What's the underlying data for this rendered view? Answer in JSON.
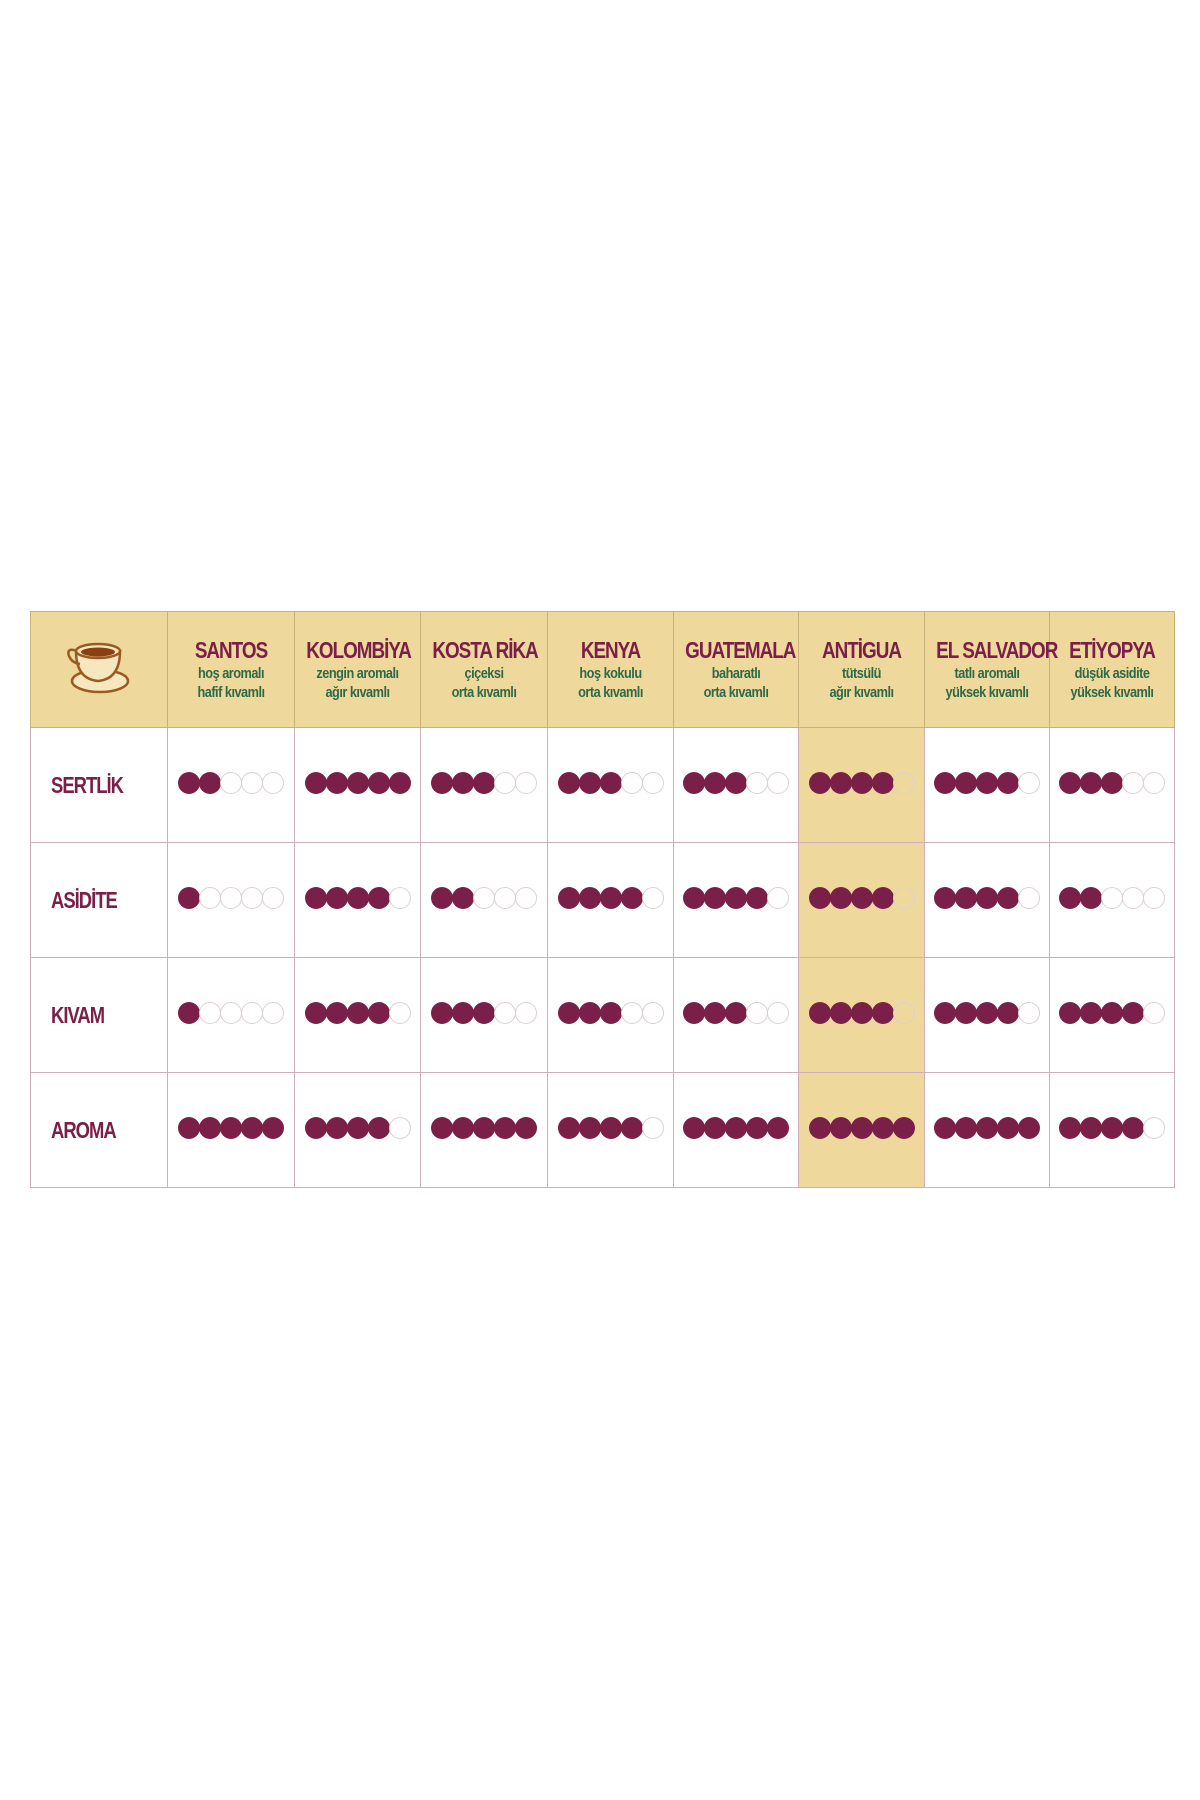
{
  "colors": {
    "header_bg": "#eed89b",
    "accent": "#7a2048",
    "subtitle": "#2f6a48",
    "highlight_column": "ANTİGUA"
  },
  "header_icon": "coffee-cup-icon",
  "columns": [
    {
      "name": "SANTOS",
      "line1": "hoş aromalı",
      "line2": "hafif kıvamlı"
    },
    {
      "name": "KOLOMBİYA",
      "line1": "zengin aromalı",
      "line2": "ağır kıvamlı"
    },
    {
      "name": "KOSTA RİKA",
      "line1": "çiçeksi",
      "line2": "orta kıvamlı"
    },
    {
      "name": "KENYA",
      "line1": "hoş kokulu",
      "line2": "orta kıvamlı"
    },
    {
      "name": "GUATEMALA",
      "line1": "baharatlı",
      "line2": "orta kıvamlı"
    },
    {
      "name": "ANTİGUA",
      "line1": "tütsülü",
      "line2": "ağır kıvamlı",
      "highlighted": true
    },
    {
      "name": "EL SALVADOR",
      "line1": "tatlı aromalı",
      "line2": "yüksek kıvamlı"
    },
    {
      "name": "ETİYOPYA",
      "line1": "düşük asidite",
      "line2": "yüksek kıvamlı"
    }
  ],
  "max_rating": 5,
  "rows": [
    {
      "label": "SERTLİK",
      "ratings": [
        2,
        5,
        3,
        3,
        3,
        4,
        4,
        3
      ]
    },
    {
      "label": "ASİDİTE",
      "ratings": [
        1,
        4,
        2,
        4,
        4,
        4,
        4,
        2
      ]
    },
    {
      "label": "KIVAM",
      "ratings": [
        1,
        4,
        3,
        3,
        3,
        4,
        4,
        4
      ]
    },
    {
      "label": "AROMA",
      "ratings": [
        5,
        4,
        5,
        4,
        5,
        5,
        5,
        4
      ]
    }
  ]
}
